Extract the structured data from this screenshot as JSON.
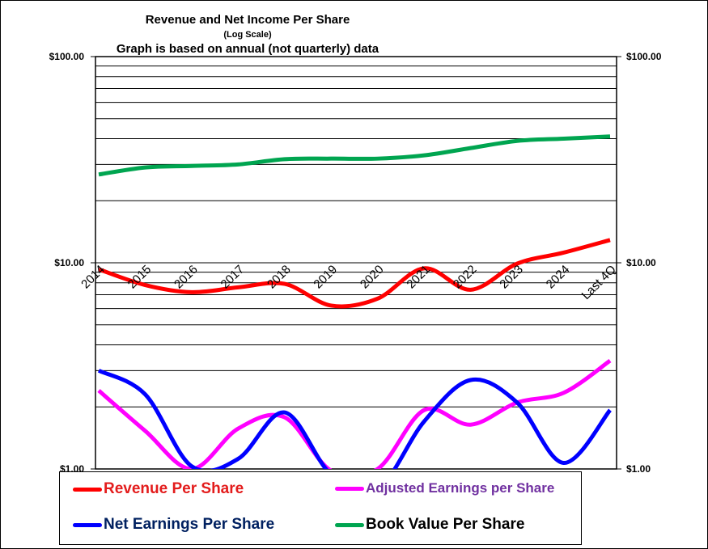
{
  "chart_data": {
    "type": "line",
    "title": "Revenue and Net Income  Per Share",
    "subtitle": "(Log Scale)",
    "subtitle2": "Graph is based on annual  (not quarterly) data",
    "yscale": "log",
    "ylim": [
      1,
      100
    ],
    "y_ticks": [
      {
        "v": 1,
        "label": "$1.00"
      },
      {
        "v": 10,
        "label": "$10.00"
      },
      {
        "v": 100,
        "label": "$100.00"
      }
    ],
    "categories": [
      "2014",
      "2015",
      "2016",
      "2017",
      "2018",
      "2019",
      "2020",
      "2021",
      "2022",
      "2023",
      "2024",
      "Last 4Q"
    ],
    "series": [
      {
        "name": "Book Value Per Share",
        "color": "#00a550",
        "text_color": "#000000",
        "values": [
          26.8,
          29,
          29.5,
          30,
          31.8,
          32,
          32,
          33.2,
          36,
          39,
          40,
          41
        ]
      },
      {
        "name": "Revenue Per Share",
        "color": "#ff0000",
        "text_color": "#e31c1c",
        "values": [
          9.3,
          7.8,
          7.2,
          7.6,
          7.9,
          6.2,
          6.7,
          9.4,
          7.4,
          9.9,
          11.2,
          12.9
        ]
      },
      {
        "name": "Adjusted Earnings per Share",
        "color": "#ff00ff",
        "text_color": "#7030a0",
        "values": [
          2.4,
          1.53,
          1.0,
          1.57,
          1.78,
          0.98,
          1.0,
          1.93,
          1.64,
          2.1,
          2.34,
          3.35
        ]
      },
      {
        "name": "Net Earnings Per Share",
        "color": "#0000ff",
        "text_color": "#002060",
        "values": [
          3.0,
          2.3,
          1.03,
          1.12,
          1.88,
          0.94,
          0.8,
          1.7,
          2.7,
          2.1,
          1.07,
          1.93
        ]
      }
    ],
    "legend_order": [
      1,
      2,
      3,
      0
    ],
    "grid": true,
    "legend": "bottom"
  }
}
